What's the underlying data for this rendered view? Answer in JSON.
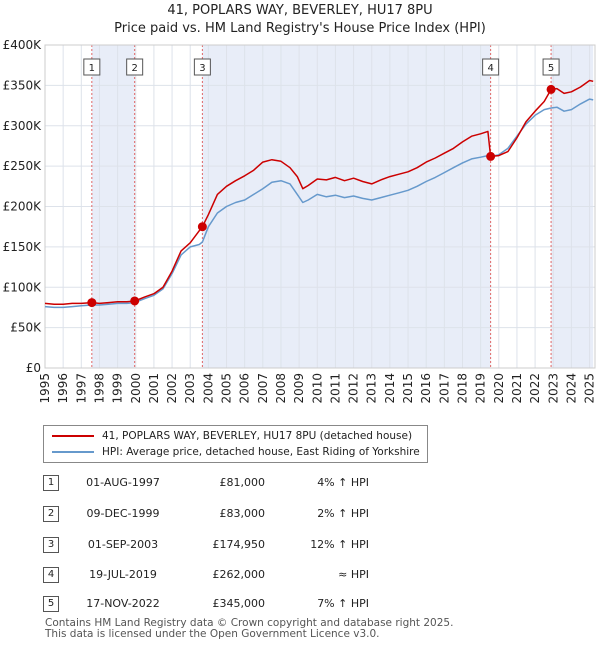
{
  "title_line1": "41, POPLARS WAY, BEVERLEY, HU17 8PU",
  "title_line2": "Price paid vs. HM Land Registry's House Price Index (HPI)",
  "chart_data": {
    "type": "line",
    "title": "41, POPLARS WAY, BEVERLEY, HU17 8PU — Price paid vs. HM Land Registry's House Price Index (HPI)",
    "xlabel": "",
    "ylabel": "",
    "xlim": [
      1995,
      2025.3
    ],
    "ylim": [
      0,
      400000
    ],
    "grid": true,
    "y_ticks": [
      0,
      50000,
      100000,
      150000,
      200000,
      250000,
      300000,
      350000,
      400000
    ],
    "y_tick_labels": [
      "£0",
      "£50K",
      "£100K",
      "£150K",
      "£200K",
      "£250K",
      "£300K",
      "£350K",
      "£400K"
    ],
    "x_ticks": [
      1995,
      1996,
      1997,
      1998,
      1999,
      2000,
      2001,
      2002,
      2003,
      2004,
      2005,
      2006,
      2007,
      2008,
      2009,
      2010,
      2011,
      2012,
      2013,
      2014,
      2015,
      2016,
      2017,
      2018,
      2019,
      2020,
      2021,
      2022,
      2023,
      2024,
      2025
    ],
    "x_tick_labels": [
      "1995",
      "1996",
      "1997",
      "1998",
      "1999",
      "2000",
      "2001",
      "2002",
      "2003",
      "2004",
      "2005",
      "2006",
      "2007",
      "2008",
      "2009",
      "2010",
      "2011",
      "2012",
      "2013",
      "2014",
      "2015",
      "2016",
      "2017",
      "2018",
      "2019",
      "2020",
      "2021",
      "2022",
      "2023",
      "2024",
      "2025"
    ],
    "series": [
      {
        "name": "41, POPLARS WAY, BEVERLEY, HU17 8PU (detached house)",
        "color": "#cc0000",
        "x": [
          1995.0,
          1995.5,
          1996.0,
          1996.5,
          1997.0,
          1997.58,
          1998.0,
          1998.5,
          1999.0,
          1999.5,
          1999.94,
          2000.5,
          2001.0,
          2001.5,
          2002.0,
          2002.5,
          2003.0,
          2003.5,
          2003.67,
          2004.0,
          2004.5,
          2005.0,
          2005.5,
          2006.0,
          2006.5,
          2007.0,
          2007.5,
          2008.0,
          2008.5,
          2008.9,
          2009.2,
          2009.5,
          2010.0,
          2010.5,
          2011.0,
          2011.5,
          2012.0,
          2012.5,
          2013.0,
          2013.5,
          2014.0,
          2014.5,
          2015.0,
          2015.5,
          2016.0,
          2016.5,
          2017.0,
          2017.5,
          2018.0,
          2018.5,
          2019.0,
          2019.4,
          2019.55,
          2020.0,
          2020.5,
          2021.0,
          2021.5,
          2022.0,
          2022.5,
          2022.88,
          2023.2,
          2023.6,
          2024.0,
          2024.5,
          2025.0,
          2025.2
        ],
        "values": [
          80000,
          79000,
          79000,
          80000,
          80000,
          81000,
          80000,
          81000,
          82000,
          82000,
          83000,
          88000,
          92000,
          100000,
          120000,
          145000,
          155000,
          170000,
          174950,
          190000,
          215000,
          225000,
          232000,
          238000,
          245000,
          255000,
          258000,
          256000,
          248000,
          237000,
          222000,
          226000,
          234000,
          233000,
          236000,
          232000,
          235000,
          231000,
          228000,
          233000,
          237000,
          240000,
          243000,
          248000,
          255000,
          260000,
          266000,
          272000,
          280000,
          287000,
          290000,
          293000,
          262000,
          263000,
          268000,
          285000,
          305000,
          318000,
          330000,
          345000,
          346000,
          340000,
          342000,
          348000,
          356000,
          355000
        ]
      },
      {
        "name": "HPI: Average price, detached house, East Riding of Yorkshire",
        "color": "#6699cc",
        "x": [
          1995.0,
          1995.5,
          1996.0,
          1996.5,
          1997.0,
          1997.58,
          1998.0,
          1998.5,
          1999.0,
          1999.5,
          1999.94,
          2000.5,
          2001.0,
          2001.5,
          2002.0,
          2002.5,
          2003.0,
          2003.5,
          2003.67,
          2004.0,
          2004.5,
          2005.0,
          2005.5,
          2006.0,
          2006.5,
          2007.0,
          2007.5,
          2008.0,
          2008.5,
          2008.9,
          2009.2,
          2009.5,
          2010.0,
          2010.5,
          2011.0,
          2011.5,
          2012.0,
          2012.5,
          2013.0,
          2013.5,
          2014.0,
          2014.5,
          2015.0,
          2015.5,
          2016.0,
          2016.5,
          2017.0,
          2017.5,
          2018.0,
          2018.5,
          2019.0,
          2019.4,
          2019.55,
          2020.0,
          2020.5,
          2021.0,
          2021.5,
          2022.0,
          2022.5,
          2022.88,
          2023.2,
          2023.6,
          2024.0,
          2024.5,
          2025.0,
          2025.2
        ],
        "values": [
          76000,
          75000,
          75000,
          76000,
          77000,
          78000,
          78000,
          79000,
          80000,
          80000,
          81000,
          86000,
          90000,
          98000,
          117000,
          140000,
          150000,
          153000,
          156000,
          175000,
          192000,
          200000,
          205000,
          208000,
          215000,
          222000,
          230000,
          232000,
          228000,
          215000,
          205000,
          208000,
          215000,
          212000,
          214000,
          211000,
          213000,
          210000,
          208000,
          211000,
          214000,
          217000,
          220000,
          225000,
          231000,
          236000,
          242000,
          248000,
          254000,
          259000,
          261000,
          263000,
          262000,
          264000,
          272000,
          287000,
          302000,
          313000,
          320000,
          322000,
          323000,
          318000,
          320000,
          327000,
          333000,
          332000
        ]
      }
    ],
    "sales": [
      {
        "label": "1",
        "x": 1997.58,
        "value": 81000
      },
      {
        "label": "2",
        "x": 1999.94,
        "value": 83000
      },
      {
        "label": "3",
        "x": 2003.67,
        "value": 174950
      },
      {
        "label": "4",
        "x": 2019.55,
        "value": 262000
      },
      {
        "label": "5",
        "x": 2022.88,
        "value": 345000
      }
    ],
    "shaded_ranges": [
      [
        1997.58,
        1999.94
      ],
      [
        2003.67,
        2019.55
      ],
      [
        2022.88,
        2025.2
      ]
    ]
  },
  "legend": {
    "property_label": "41, POPLARS WAY, BEVERLEY, HU17 8PU (detached house)",
    "hpi_label": "HPI: Average price, detached house, East Riding of Yorkshire",
    "property_color": "#cc0000",
    "hpi_color": "#6699cc"
  },
  "transactions": [
    {
      "num": "1",
      "date": "01-AUG-1997",
      "price": "£81,000",
      "hpi": "4% ↑ HPI"
    },
    {
      "num": "2",
      "date": "09-DEC-1999",
      "price": "£83,000",
      "hpi": "2% ↑ HPI"
    },
    {
      "num": "3",
      "date": "01-SEP-2003",
      "price": "£174,950",
      "hpi": "12% ↑ HPI"
    },
    {
      "num": "4",
      "date": "19-JUL-2019",
      "price": "£262,000",
      "hpi": "≈ HPI"
    },
    {
      "num": "5",
      "date": "17-NOV-2022",
      "price": "£345,000",
      "hpi": "7% ↑ HPI"
    }
  ],
  "footer_line1": "Contains HM Land Registry data © Crown copyright and database right 2025.",
  "footer_line2": "This data is licensed under the Open Government Licence v3.0."
}
